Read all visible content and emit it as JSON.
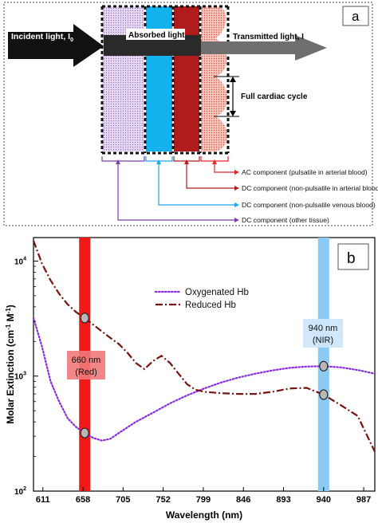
{
  "panel_a": {
    "label": "a",
    "incident_light": "Incident light, I",
    "incident_light_sub": "0",
    "absorbed_light": "Absorbed light",
    "transmitted_light": "Transmitted light, I",
    "full_cardiac_cycle": "Full cardiac cycle",
    "components": [
      {
        "text": "AC component (pulsatile in arterial blood)",
        "color": "#e8222b"
      },
      {
        "text": "DC component (non-pulsatile in arterial blood)",
        "color": "#b01c1c"
      },
      {
        "text": "DC component (non-pulsatile venous blood)",
        "color": "#1ba8e6"
      },
      {
        "text": "DC component (other tissue)",
        "color": "#7b3fa8"
      }
    ],
    "colors": {
      "other_tissue": "#d9c6ec",
      "venous": "#12b2ef",
      "arterial_dc": "#b01c1c",
      "arterial_ac": "#f0a090"
    }
  },
  "panel_b": {
    "label": "b",
    "marker_red_label_line1": "660 nm",
    "marker_red_label_line2": "(Red)",
    "marker_nir_label_line1": "940 nm",
    "marker_nir_label_line2": "(NIR)"
  },
  "chart_data": {
    "type": "line",
    "xlabel": "Wavelength (nm)",
    "ylabel_main": "Molar Extinction (cm",
    "ylabel_sup1": "-1",
    "ylabel_mid": " M",
    "ylabel_sup2": "-1",
    "ylabel_end": ")",
    "xlim": [
      600,
      1000
    ],
    "ylim": [
      100,
      16000
    ],
    "yscale": "log",
    "x_ticks": [
      611,
      658,
      705,
      752,
      799,
      846,
      893,
      940,
      987
    ],
    "y_ticks": [
      {
        "value": 100,
        "base": "10",
        "exp": "2"
      },
      {
        "value": 1000,
        "base": "10",
        "exp": "3"
      },
      {
        "value": 10000,
        "base": "10",
        "exp": "4"
      }
    ],
    "legend_position": "upper-center",
    "series": [
      {
        "name": "Oxygenated Hb",
        "color": "#8a2be2",
        "style": "dotted",
        "x": [
          600,
          610,
          620,
          630,
          640,
          650,
          660,
          670,
          680,
          690,
          700,
          720,
          740,
          760,
          780,
          800,
          820,
          840,
          860,
          880,
          900,
          920,
          940,
          960,
          980,
          1000
        ],
        "y": [
          3200,
          1800,
          900,
          600,
          430,
          360,
          320,
          290,
          275,
          285,
          320,
          400,
          480,
          580,
          680,
          780,
          880,
          970,
          1050,
          1120,
          1180,
          1210,
          1220,
          1190,
          1130,
          1050
        ]
      },
      {
        "name": "Reduced Hb",
        "color": "#7a1212",
        "style": "dash-dot",
        "x": [
          600,
          610,
          620,
          630,
          640,
          650,
          660,
          670,
          680,
          690,
          700,
          710,
          720,
          730,
          740,
          750,
          760,
          770,
          780,
          790,
          800,
          820,
          840,
          860,
          880,
          900,
          920,
          940,
          960,
          980,
          1000
        ],
        "y": [
          15000,
          9500,
          6800,
          5200,
          4200,
          3600,
          3200,
          2800,
          2450,
          2150,
          1900,
          1600,
          1300,
          1150,
          1350,
          1500,
          1300,
          1050,
          850,
          760,
          730,
          710,
          700,
          700,
          730,
          780,
          790,
          690,
          560,
          450,
          220
        ]
      }
    ],
    "markers": [
      {
        "x": 660,
        "series": "Oxygenated Hb",
        "y": 320
      },
      {
        "x": 660,
        "series": "Reduced Hb",
        "y": 3200
      },
      {
        "x": 940,
        "series": "Oxygenated Hb",
        "y": 1220
      },
      {
        "x": 940,
        "series": "Reduced Hb",
        "y": 690
      }
    ],
    "bands": [
      {
        "x": 660,
        "color": "#f21818"
      },
      {
        "x": 940,
        "color": "#8ccaf6"
      }
    ]
  }
}
